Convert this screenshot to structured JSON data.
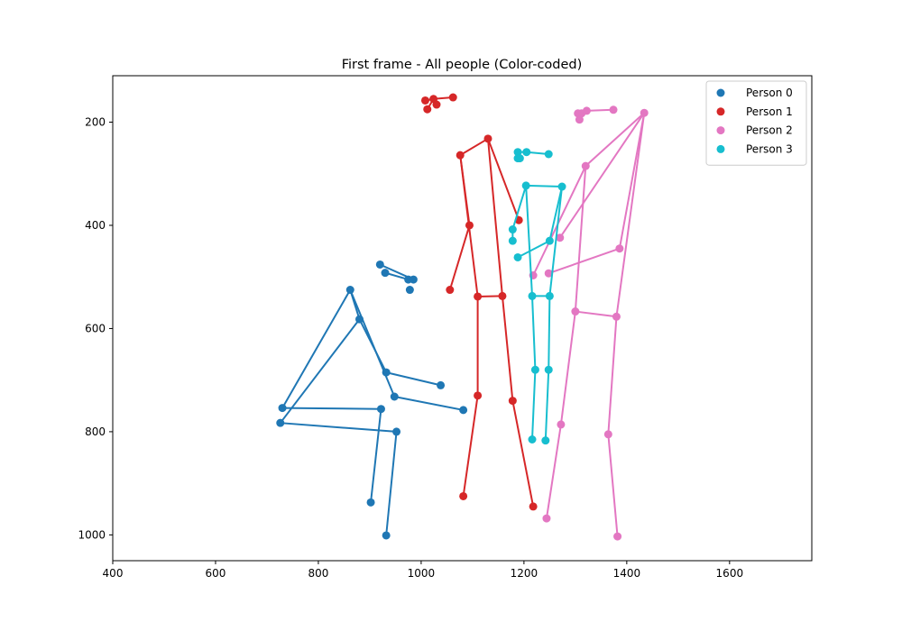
{
  "chart_data": {
    "type": "scatter",
    "title": "First frame - All people (Color-coded)",
    "xlabel": "",
    "ylabel": "",
    "xlim": [
      400,
      1760
    ],
    "ylim": [
      1050,
      110
    ],
    "y_inverted": true,
    "x_ticks": [
      400,
      600,
      800,
      1000,
      1200,
      1400,
      1600
    ],
    "x_tick_labels": [
      "400",
      "600",
      "800",
      "1000",
      "1200",
      "1400",
      "1600"
    ],
    "y_ticks": [
      200,
      400,
      600,
      800,
      1000
    ],
    "y_tick_labels": [
      "200",
      "400",
      "600",
      "800",
      "1000"
    ],
    "grid": false,
    "legend_position": "top-right",
    "series": [
      {
        "name": "Person 0",
        "color": "#1f77b4",
        "points": [
          [
            920,
            476
          ],
          [
            930,
            492
          ],
          [
            975,
            505
          ],
          [
            985,
            505
          ],
          [
            978,
            525
          ],
          [
            862,
            525
          ],
          [
            880,
            582
          ],
          [
            932,
            685
          ],
          [
            948,
            732
          ],
          [
            1038,
            710
          ],
          [
            1082,
            758
          ],
          [
            730,
            754
          ],
          [
            726,
            783
          ],
          [
            922,
            756
          ],
          [
            952,
            800
          ],
          [
            902,
            937
          ],
          [
            932,
            1001
          ]
        ],
        "segments": [
          [
            920,
            476,
            985,
            505
          ],
          [
            930,
            492,
            975,
            505
          ],
          [
            862,
            525,
            880,
            582
          ],
          [
            862,
            525,
            948,
            732
          ],
          [
            880,
            582,
            932,
            685
          ],
          [
            862,
            525,
            730,
            754
          ],
          [
            880,
            582,
            726,
            783
          ],
          [
            932,
            685,
            1038,
            710
          ],
          [
            948,
            732,
            1082,
            758
          ],
          [
            730,
            754,
            922,
            756
          ],
          [
            726,
            783,
            952,
            800
          ],
          [
            922,
            756,
            902,
            937
          ],
          [
            952,
            800,
            932,
            1001
          ]
        ]
      },
      {
        "name": "Person 1",
        "color": "#d62728",
        "points": [
          [
            1008,
            158
          ],
          [
            1024,
            155
          ],
          [
            1062,
            152
          ],
          [
            1012,
            175
          ],
          [
            1030,
            166
          ],
          [
            1130,
            232
          ],
          [
            1076,
            264
          ],
          [
            1190,
            390
          ],
          [
            1094,
            400
          ],
          [
            1056,
            525
          ],
          [
            1110,
            538
          ],
          [
            1158,
            537
          ],
          [
            1110,
            730
          ],
          [
            1178,
            740
          ],
          [
            1082,
            925
          ],
          [
            1218,
            945
          ]
        ],
        "segments": [
          [
            1008,
            158,
            1024,
            155
          ],
          [
            1024,
            155,
            1062,
            152
          ],
          [
            1024,
            155,
            1012,
            175
          ],
          [
            1024,
            155,
            1030,
            166
          ],
          [
            1076,
            264,
            1130,
            232
          ],
          [
            1076,
            264,
            1094,
            400
          ],
          [
            1094,
            400,
            1056,
            525
          ],
          [
            1130,
            232,
            1190,
            390
          ],
          [
            1076,
            264,
            1110,
            538
          ],
          [
            1130,
            232,
            1158,
            537
          ],
          [
            1110,
            538,
            1158,
            537
          ],
          [
            1110,
            538,
            1110,
            730
          ],
          [
            1158,
            537,
            1178,
            740
          ],
          [
            1110,
            730,
            1082,
            925
          ],
          [
            1178,
            740,
            1218,
            945
          ]
        ]
      },
      {
        "name": "Person 2",
        "color": "#e377c2",
        "points": [
          [
            1305,
            183
          ],
          [
            1312,
            183
          ],
          [
            1308,
            195
          ],
          [
            1322,
            178
          ],
          [
            1374,
            176
          ],
          [
            1320,
            285
          ],
          [
            1434,
            182
          ],
          [
            1218,
            497
          ],
          [
            1248,
            493
          ],
          [
            1270,
            424
          ],
          [
            1386,
            445
          ],
          [
            1300,
            567
          ],
          [
            1380,
            577
          ],
          [
            1272,
            786
          ],
          [
            1364,
            805
          ],
          [
            1244,
            968
          ],
          [
            1382,
            1003
          ]
        ],
        "segments": [
          [
            1305,
            183,
            1312,
            183
          ],
          [
            1312,
            183,
            1322,
            178
          ],
          [
            1322,
            178,
            1374,
            176
          ],
          [
            1305,
            183,
            1308,
            195
          ],
          [
            1320,
            285,
            1434,
            182
          ],
          [
            1320,
            285,
            1218,
            497
          ],
          [
            1434,
            182,
            1270,
            424
          ],
          [
            1434,
            182,
            1386,
            445
          ],
          [
            1386,
            445,
            1248,
            493
          ],
          [
            1320,
            285,
            1300,
            567
          ],
          [
            1434,
            182,
            1380,
            577
          ],
          [
            1300,
            567,
            1380,
            577
          ],
          [
            1300,
            567,
            1272,
            786
          ],
          [
            1380,
            577,
            1364,
            805
          ],
          [
            1272,
            786,
            1244,
            968
          ],
          [
            1364,
            805,
            1382,
            1003
          ]
        ]
      },
      {
        "name": "Person 3",
        "color": "#17becf",
        "points": [
          [
            1188,
            258
          ],
          [
            1205,
            258
          ],
          [
            1188,
            270
          ],
          [
            1192,
            270
          ],
          [
            1248,
            262
          ],
          [
            1204,
            323
          ],
          [
            1274,
            325
          ],
          [
            1178,
            408
          ],
          [
            1178,
            430
          ],
          [
            1188,
            462
          ],
          [
            1250,
            430
          ],
          [
            1216,
            537
          ],
          [
            1250,
            537
          ],
          [
            1222,
            680
          ],
          [
            1248,
            680
          ],
          [
            1216,
            815
          ],
          [
            1242,
            817
          ]
        ],
        "segments": [
          [
            1188,
            258,
            1205,
            258
          ],
          [
            1205,
            258,
            1248,
            262
          ],
          [
            1188,
            258,
            1188,
            270
          ],
          [
            1188,
            258,
            1192,
            270
          ],
          [
            1204,
            323,
            1274,
            325
          ],
          [
            1204,
            323,
            1178,
            408
          ],
          [
            1178,
            408,
            1178,
            430
          ],
          [
            1274,
            325,
            1250,
            430
          ],
          [
            1250,
            430,
            1188,
            462
          ],
          [
            1204,
            323,
            1216,
            537
          ],
          [
            1274,
            325,
            1250,
            537
          ],
          [
            1216,
            537,
            1250,
            537
          ],
          [
            1216,
            537,
            1222,
            680
          ],
          [
            1250,
            537,
            1248,
            680
          ],
          [
            1222,
            680,
            1216,
            815
          ],
          [
            1248,
            680,
            1242,
            817
          ]
        ]
      }
    ]
  }
}
